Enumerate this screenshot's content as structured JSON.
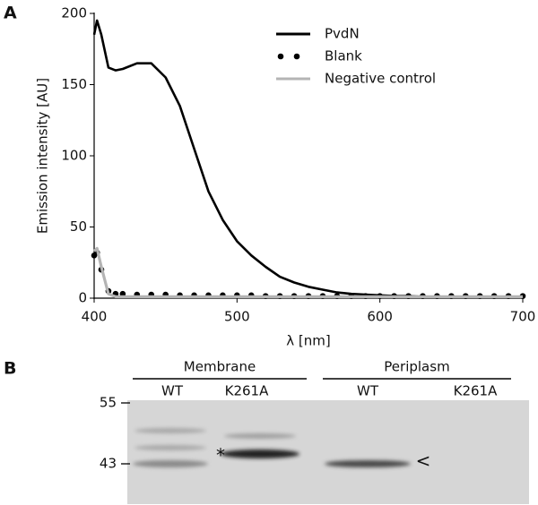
{
  "chart_data": {
    "type": "line",
    "panel_label": "A",
    "x_label": "λ [nm]",
    "y_label": "Emission intensity [AU]",
    "xlim": [
      400,
      700
    ],
    "xticks": [
      400,
      500,
      600,
      700
    ],
    "ylim": [
      0,
      200
    ],
    "yticks": [
      0,
      50,
      100,
      150,
      200
    ],
    "x": [
      400,
      402,
      405,
      410,
      415,
      420,
      430,
      440,
      450,
      460,
      470,
      480,
      490,
      500,
      510,
      520,
      530,
      540,
      550,
      560,
      570,
      580,
      590,
      600,
      610,
      620,
      630,
      640,
      650,
      660,
      670,
      680,
      690,
      700
    ],
    "series": [
      {
        "name": "PvdN",
        "color": "#000000",
        "marker": "line",
        "values": [
          185,
          195,
          185,
          162,
          160,
          161,
          165,
          165,
          155,
          135,
          105,
          75,
          55,
          40,
          30,
          22,
          15,
          11,
          8,
          6,
          4,
          3,
          2.5,
          2,
          1.5,
          1.5,
          1,
          1,
          1,
          1,
          1,
          1,
          1,
          1
        ]
      },
      {
        "name": "Blank",
        "color": "#000000",
        "marker": "dot",
        "values": [
          30,
          32,
          20,
          5,
          3,
          3,
          2.5,
          2.5,
          2.5,
          2,
          2,
          2,
          2,
          2,
          2,
          1.5,
          1.5,
          1.5,
          1.5,
          1.5,
          1.5,
          1.5,
          1.5,
          1.5,
          1.5,
          1.5,
          1.5,
          1.5,
          1.5,
          1.5,
          1.5,
          1.5,
          1.5,
          1.5
        ]
      },
      {
        "name": "Negative control",
        "color": "#b4b4b4",
        "marker": "line",
        "values": [
          33,
          35,
          22,
          3,
          1,
          1,
          1,
          1,
          1,
          1,
          1,
          1,
          1,
          1,
          1,
          1,
          1,
          1,
          1,
          1,
          1,
          1,
          1,
          1,
          1,
          1,
          1,
          1,
          1,
          1,
          1,
          1,
          1,
          1
        ]
      }
    ]
  },
  "blot": {
    "panel_label": "B",
    "groups": [
      {
        "label": "Membrane",
        "lanes": [
          "WT",
          "K261A"
        ]
      },
      {
        "label": "Periplasm",
        "lanes": [
          "WT",
          "K261A"
        ]
      }
    ],
    "markers": [
      "55",
      "43"
    ],
    "annotations": [
      "*",
      "<"
    ]
  }
}
